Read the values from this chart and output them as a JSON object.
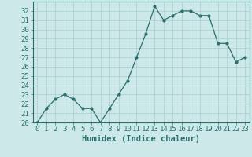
{
  "x": [
    0,
    1,
    2,
    3,
    4,
    5,
    6,
    7,
    8,
    9,
    10,
    11,
    12,
    13,
    14,
    15,
    16,
    17,
    18,
    19,
    20,
    21,
    22,
    23
  ],
  "y": [
    20,
    21.5,
    22.5,
    23,
    22.5,
    21.5,
    21.5,
    20,
    21.5,
    23,
    24.5,
    27,
    29.5,
    32.5,
    31,
    31.5,
    32,
    32,
    31.5,
    31.5,
    28.5,
    28.5,
    26.5,
    27
  ],
  "line_color": "#2d6e6e",
  "marker": "o",
  "marker_size": 2,
  "bg_color": "#cce8e8",
  "grid_color": "#aacece",
  "xlabel": "Humidex (Indice chaleur)",
  "ylim": [
    20,
    33
  ],
  "xlim": [
    -0.5,
    23.5
  ],
  "yticks": [
    20,
    21,
    22,
    23,
    24,
    25,
    26,
    27,
    28,
    29,
    30,
    31,
    32
  ],
  "xticks": [
    0,
    1,
    2,
    3,
    4,
    5,
    6,
    7,
    8,
    9,
    10,
    11,
    12,
    13,
    14,
    15,
    16,
    17,
    18,
    19,
    20,
    21,
    22,
    23
  ],
  "tick_label_size": 6.5,
  "xlabel_size": 7.5
}
